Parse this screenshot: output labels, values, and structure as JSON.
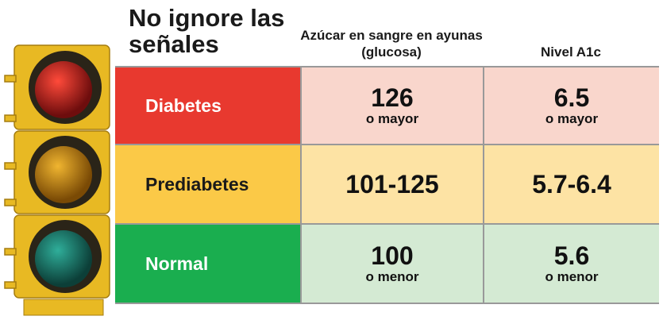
{
  "title": "No ignore las señales",
  "table": {
    "headers": [
      "Azúcar en sangre en ayunas (glucosa)",
      "Nivel A1c"
    ],
    "rows": [
      {
        "label": "Diabetes",
        "glucose": {
          "value": "126",
          "note": "o mayor"
        },
        "a1c": {
          "value": "6.5",
          "note": "o mayor"
        }
      },
      {
        "label": "Prediabetes",
        "glucose": {
          "value": "101-125"
        },
        "a1c": {
          "value": "5.7-6.4"
        }
      },
      {
        "label": "Normal",
        "glucose": {
          "value": "100",
          "note": "o menor"
        },
        "a1c": {
          "value": "5.6",
          "note": "o menor"
        }
      }
    ]
  }
}
